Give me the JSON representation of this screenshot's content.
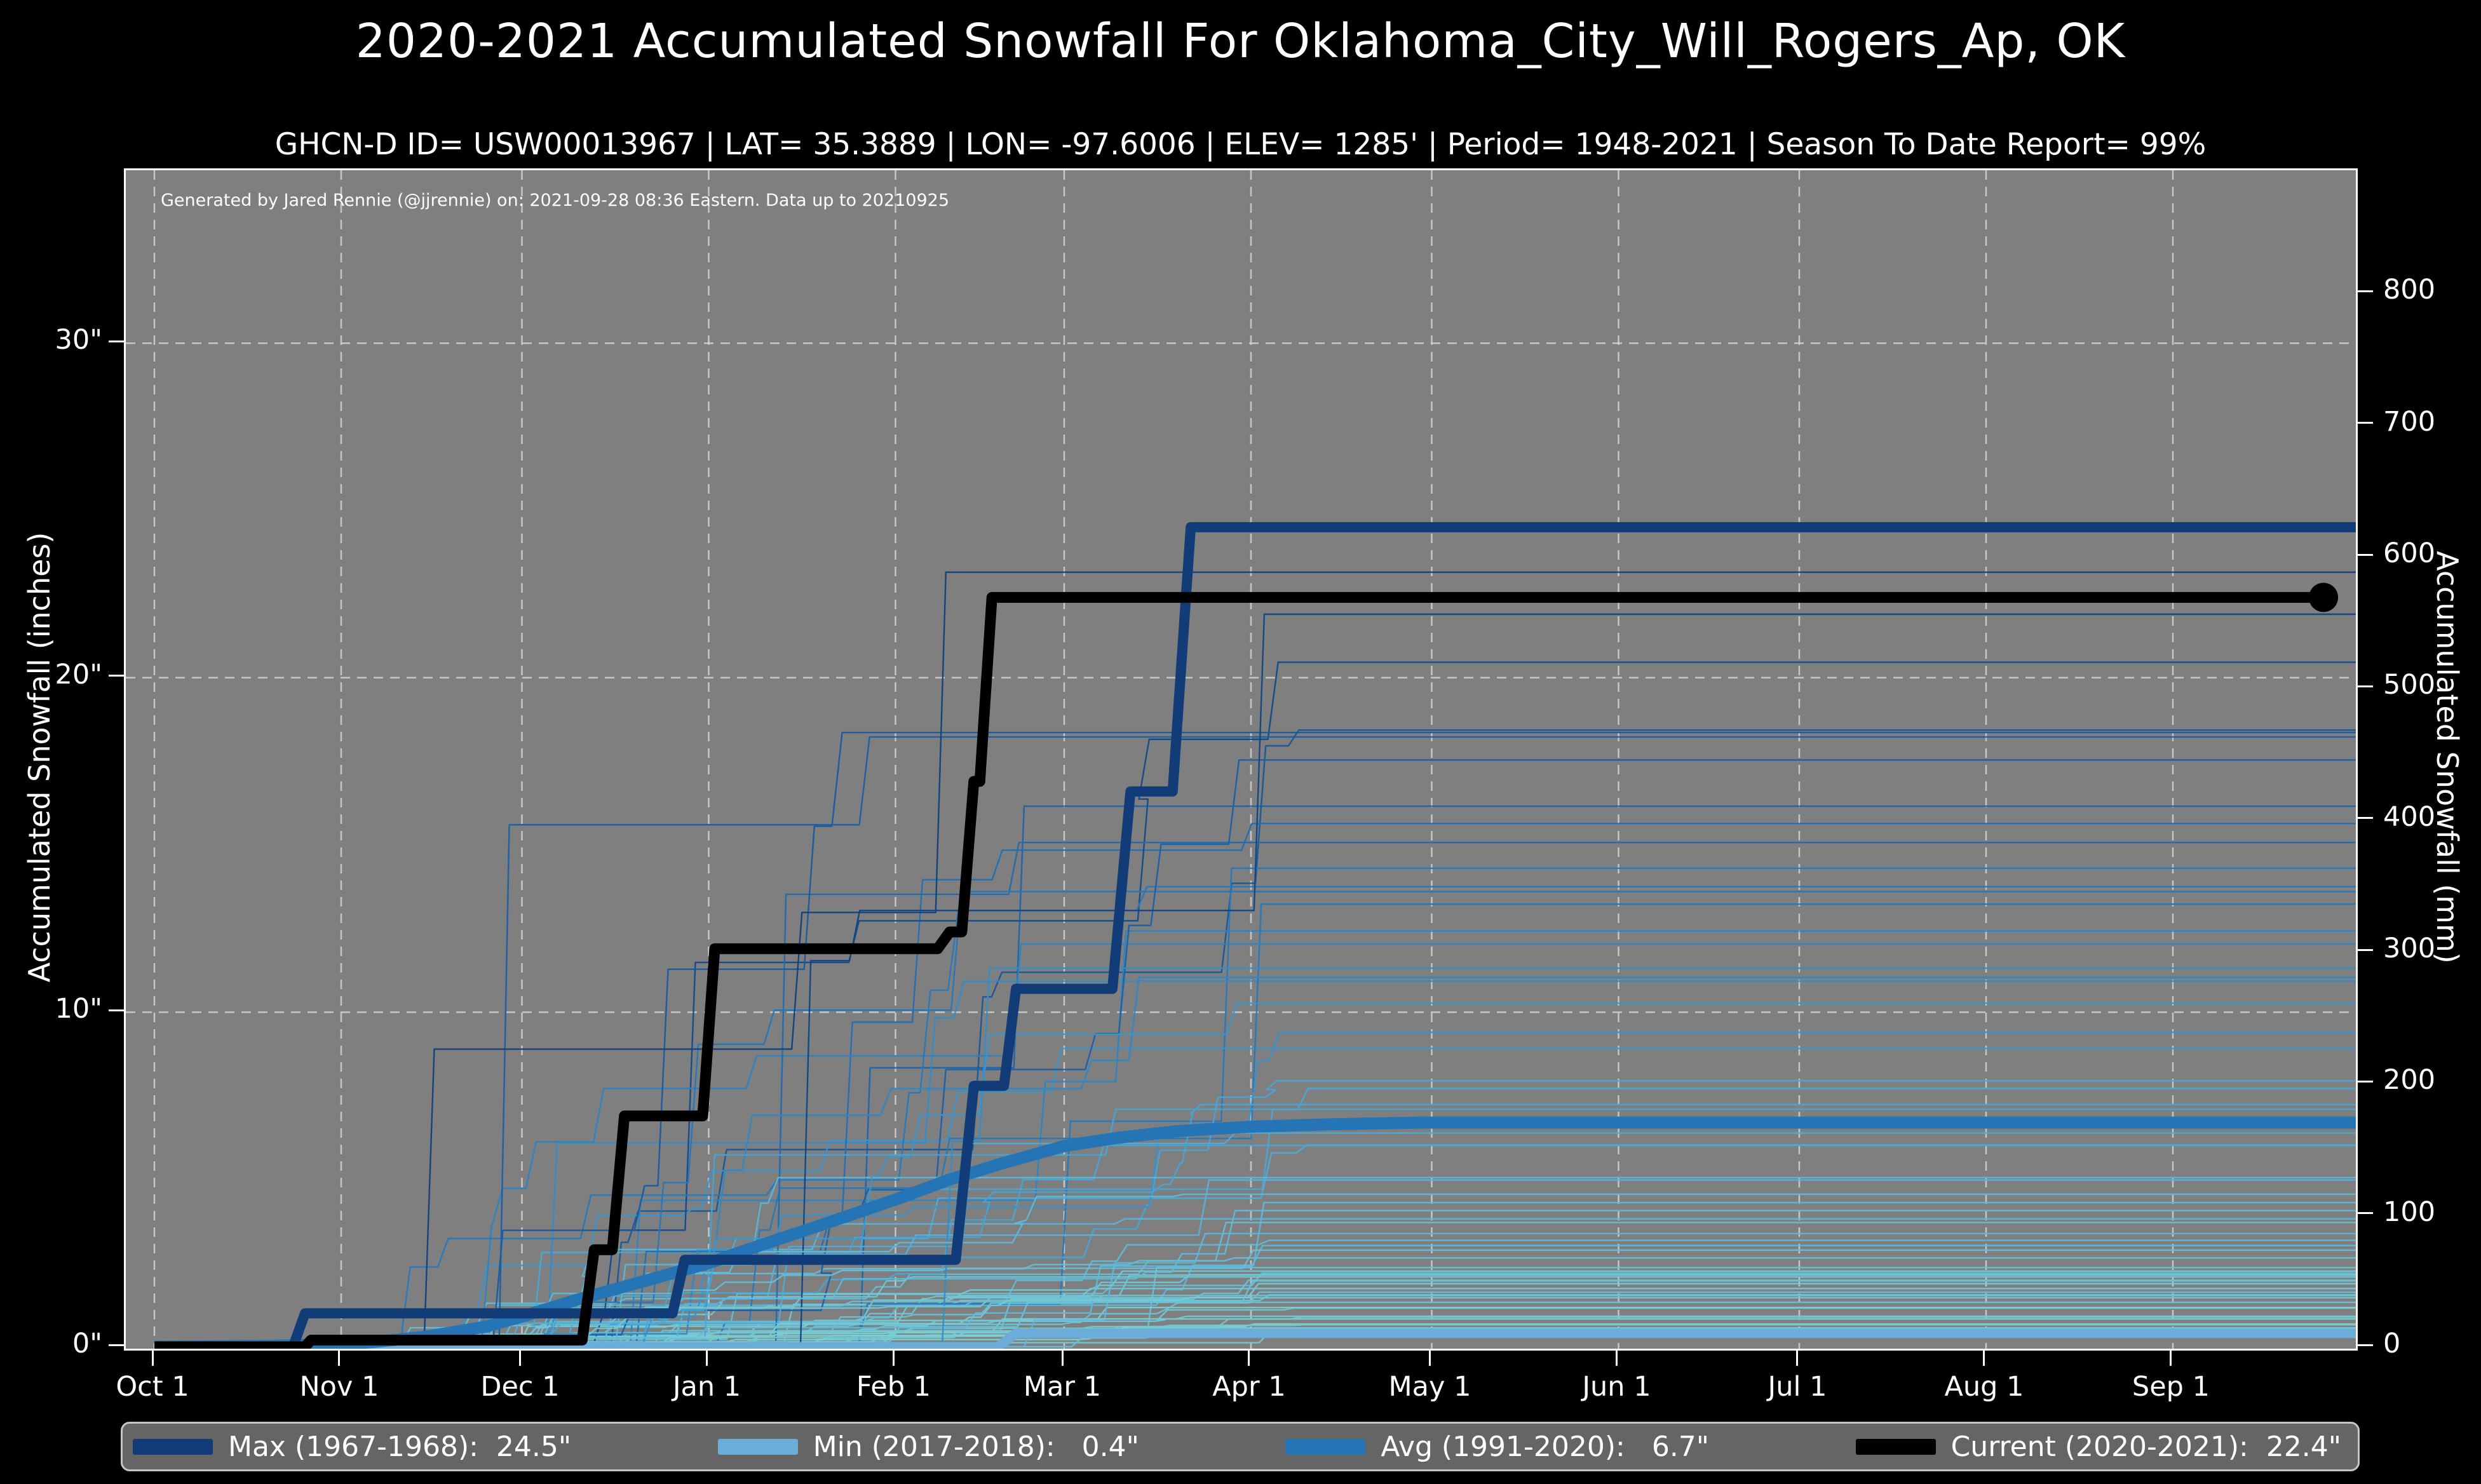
{
  "header": {
    "title": "2020-2021 Accumulated Snowfall For Oklahoma_City_Will_Rogers_Ap, OK",
    "subtitle": "GHCN-D ID= USW00013967 | LAT= 35.3889 | LON= -97.6006 | ELEV= 1285' | Period= 1948-2021 | Season To Date Report= 99%"
  },
  "attribution": "Generated by Jared Rennie (@jjrennie) on: 2021-09-28 08:36 Eastern. Data up to 20210925",
  "axes": {
    "left": {
      "label": "Accumulated Snowfall (inches)",
      "ticks": [
        {
          "value": 0,
          "label": "0\""
        },
        {
          "value": 10,
          "label": "10\""
        },
        {
          "value": 20,
          "label": "20\""
        },
        {
          "value": 30,
          "label": "30\""
        }
      ]
    },
    "right": {
      "label": "Accumulated Snowfall (mm)",
      "ticks": [
        {
          "value": 0,
          "label": "0"
        },
        {
          "value": 100,
          "label": "100"
        },
        {
          "value": 200,
          "label": "200"
        },
        {
          "value": 300,
          "label": "300"
        },
        {
          "value": 400,
          "label": "400"
        },
        {
          "value": 500,
          "label": "500"
        },
        {
          "value": 600,
          "label": "600"
        },
        {
          "value": 700,
          "label": "700"
        },
        {
          "value": 800,
          "label": "800"
        }
      ]
    },
    "x": {
      "ticks": [
        {
          "label": "Oct 1",
          "day": 0
        },
        {
          "label": "Nov 1",
          "day": 31
        },
        {
          "label": "Dec 1",
          "day": 61
        },
        {
          "label": "Jan 1",
          "day": 92
        },
        {
          "label": "Feb 1",
          "day": 123
        },
        {
          "label": "Mar 1",
          "day": 151
        },
        {
          "label": "Apr 1",
          "day": 182
        },
        {
          "label": "May 1",
          "day": 212
        },
        {
          "label": "Jun 1",
          "day": 243
        },
        {
          "label": "Jul 1",
          "day": 273
        },
        {
          "label": "Aug 1",
          "day": 304
        },
        {
          "label": "Sep 1",
          "day": 335
        }
      ]
    }
  },
  "legend": {
    "items": [
      {
        "name": "max",
        "label": "Max (1967-1968):  24.5\"",
        "color": "#123c78"
      },
      {
        "name": "min",
        "label": "Min (2017-2018):   0.4\"",
        "color": "#6cacd9"
      },
      {
        "name": "avg",
        "label": "Avg (1991-2020):   6.7\"",
        "color": "#2474b6"
      },
      {
        "name": "current",
        "label": "Current (2020-2021):  22.4\"",
        "color": "#000000"
      }
    ]
  },
  "colors": {
    "page_bg": "#000000",
    "plot_bg": "#7f7f7f",
    "grid": "#d2d2d2",
    "spine": "#ffffff",
    "text": "#ffffff",
    "max_line": "#123c78",
    "min_line": "#6cacd9",
    "avg_line": "#2474b6",
    "current_line": "#000000",
    "legend_bg": "#656565",
    "legend_border": "#c6c6c6"
  },
  "chart_data": {
    "type": "line",
    "title": "2020-2021 Accumulated Snowfall For Oklahoma_City_Will_Rogers_Ap, OK",
    "xlabel": "",
    "ylabel_left": "Accumulated Snowfall (inches)",
    "ylabel_right": "Accumulated Snowfall (mm)",
    "x_axis": {
      "unit": "days since Oct 1",
      "range": [
        0,
        365.6
      ],
      "month_ticks": [
        "Oct 1",
        "Nov 1",
        "Dec 1",
        "Jan 1",
        "Feb 1",
        "Mar 1",
        "Apr 1",
        "May 1",
        "Jun 1",
        "Jul 1",
        "Aug 1",
        "Sep 1"
      ]
    },
    "y_axis_inches": {
      "range": [
        0,
        35.2
      ],
      "gridline_values": [
        10,
        20,
        30
      ]
    },
    "y_axis_mm": {
      "range": [
        0,
        894
      ],
      "tick_step": 100
    },
    "grid": {
      "vertical_at_each_month": true,
      "style": "dashed"
    },
    "legend_position": "bottom",
    "series": [
      {
        "name": "Max (1967-1968)",
        "final_inches": 24.5,
        "color": "#123c78",
        "width": 16,
        "steps": [
          [
            0,
            0
          ],
          [
            23,
            0
          ],
          [
            25,
            1.0
          ],
          [
            86,
            1.0
          ],
          [
            88,
            2.6
          ],
          [
            133,
            2.6
          ],
          [
            136,
            7.8
          ],
          [
            141,
            7.8
          ],
          [
            143,
            10.7
          ],
          [
            159,
            10.7
          ],
          [
            162,
            16.6
          ],
          [
            169,
            16.6
          ],
          [
            172,
            24.5
          ],
          [
            365.6,
            24.5
          ]
        ]
      },
      {
        "name": "Min (2017-2018)",
        "final_inches": 0.4,
        "color": "#6cacd9",
        "width": 15,
        "steps": [
          [
            0,
            0
          ],
          [
            140,
            0
          ],
          [
            143,
            0.4
          ],
          [
            365.6,
            0.4
          ]
        ]
      },
      {
        "name": "Avg (1991-2020)",
        "final_inches": 6.7,
        "color": "#2474b6",
        "width": 19,
        "smooth": true,
        "steps": [
          [
            0,
            0
          ],
          [
            20,
            0.03
          ],
          [
            35,
            0.12
          ],
          [
            45,
            0.3
          ],
          [
            55,
            0.6
          ],
          [
            61,
            0.9
          ],
          [
            70,
            1.4
          ],
          [
            80,
            1.9
          ],
          [
            92,
            2.5
          ],
          [
            100,
            3.0
          ],
          [
            110,
            3.6
          ],
          [
            123,
            4.4
          ],
          [
            132,
            5.0
          ],
          [
            141,
            5.5
          ],
          [
            151,
            6.0
          ],
          [
            160,
            6.25
          ],
          [
            170,
            6.45
          ],
          [
            182,
            6.58
          ],
          [
            195,
            6.65
          ],
          [
            210,
            6.7
          ],
          [
            365.6,
            6.7
          ]
        ]
      },
      {
        "name": "Current (2020-2021)",
        "final_inches": 22.4,
        "color": "#000000",
        "width": 17,
        "steps": [
          [
            0,
            0
          ],
          [
            25,
            0
          ],
          [
            26,
            0.2
          ],
          [
            71,
            0.2
          ],
          [
            73,
            2.9
          ],
          [
            76,
            2.9
          ],
          [
            78,
            6.9
          ],
          [
            91,
            6.9
          ],
          [
            93,
            11.9
          ],
          [
            130,
            11.9
          ],
          [
            132,
            12.4
          ],
          [
            134,
            12.4
          ],
          [
            136,
            16.9
          ],
          [
            137,
            16.9
          ],
          [
            139,
            22.4
          ],
          [
            360,
            22.4
          ]
        ],
        "end_marker": {
          "day": 360,
          "value_inches": 22.4,
          "radius": 23
        }
      }
    ],
    "background_seasons": {
      "description": "Approximately 70 historical seasons (1948-2020) drawn as thin unlabeled step lines, color-graded from light cyan (low totals) to dark navy (high totals)",
      "count": 72,
      "seed": 20210925,
      "final_range_inches": [
        0.4,
        24.2
      ],
      "event_day_window": [
        40,
        190
      ],
      "palette": [
        "#7ed0cf",
        "#5cb8dc",
        "#3ea0d6",
        "#2b84c4",
        "#1d67ad",
        "#124a8c",
        "#0d3a78"
      ],
      "line_width": 2.4
    }
  }
}
